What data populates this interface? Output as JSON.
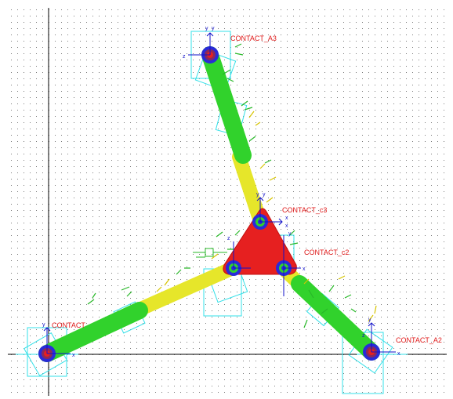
{
  "colors": {
    "background": "#ffffff",
    "grid_dot": "#7a7a7a",
    "axis_line": "#000000",
    "platform_red": "#e62020",
    "leg_green": "#31d22c",
    "leg_yellow": "#e6e62a",
    "joint_blue": "#2a2ad8",
    "joint_inner": "#8a2a5a",
    "joint_red": "#e62020",
    "frame_cyan": "#33e0e8",
    "label_red": "#e01818",
    "axis_blue": "#1010c8",
    "marker_green": "#28b828",
    "marker_yellow": "#d6c400"
  },
  "labels": {
    "contact_a3": "CONTACT_A3",
    "contact_c3": "CONTACT_c3",
    "contact_c2": "CONTACT_c2",
    "contact_a2": "CONTACT_A2",
    "contact_a1": "CONTACT"
  },
  "axis_letters": {
    "x": "x",
    "y": "y",
    "z": "z"
  },
  "icons": {
    "ground_joint": "revolute-joint-icon",
    "platform_joint": "revolute-joint-icon",
    "frame_marker": "coordinate-frame-icon"
  }
}
